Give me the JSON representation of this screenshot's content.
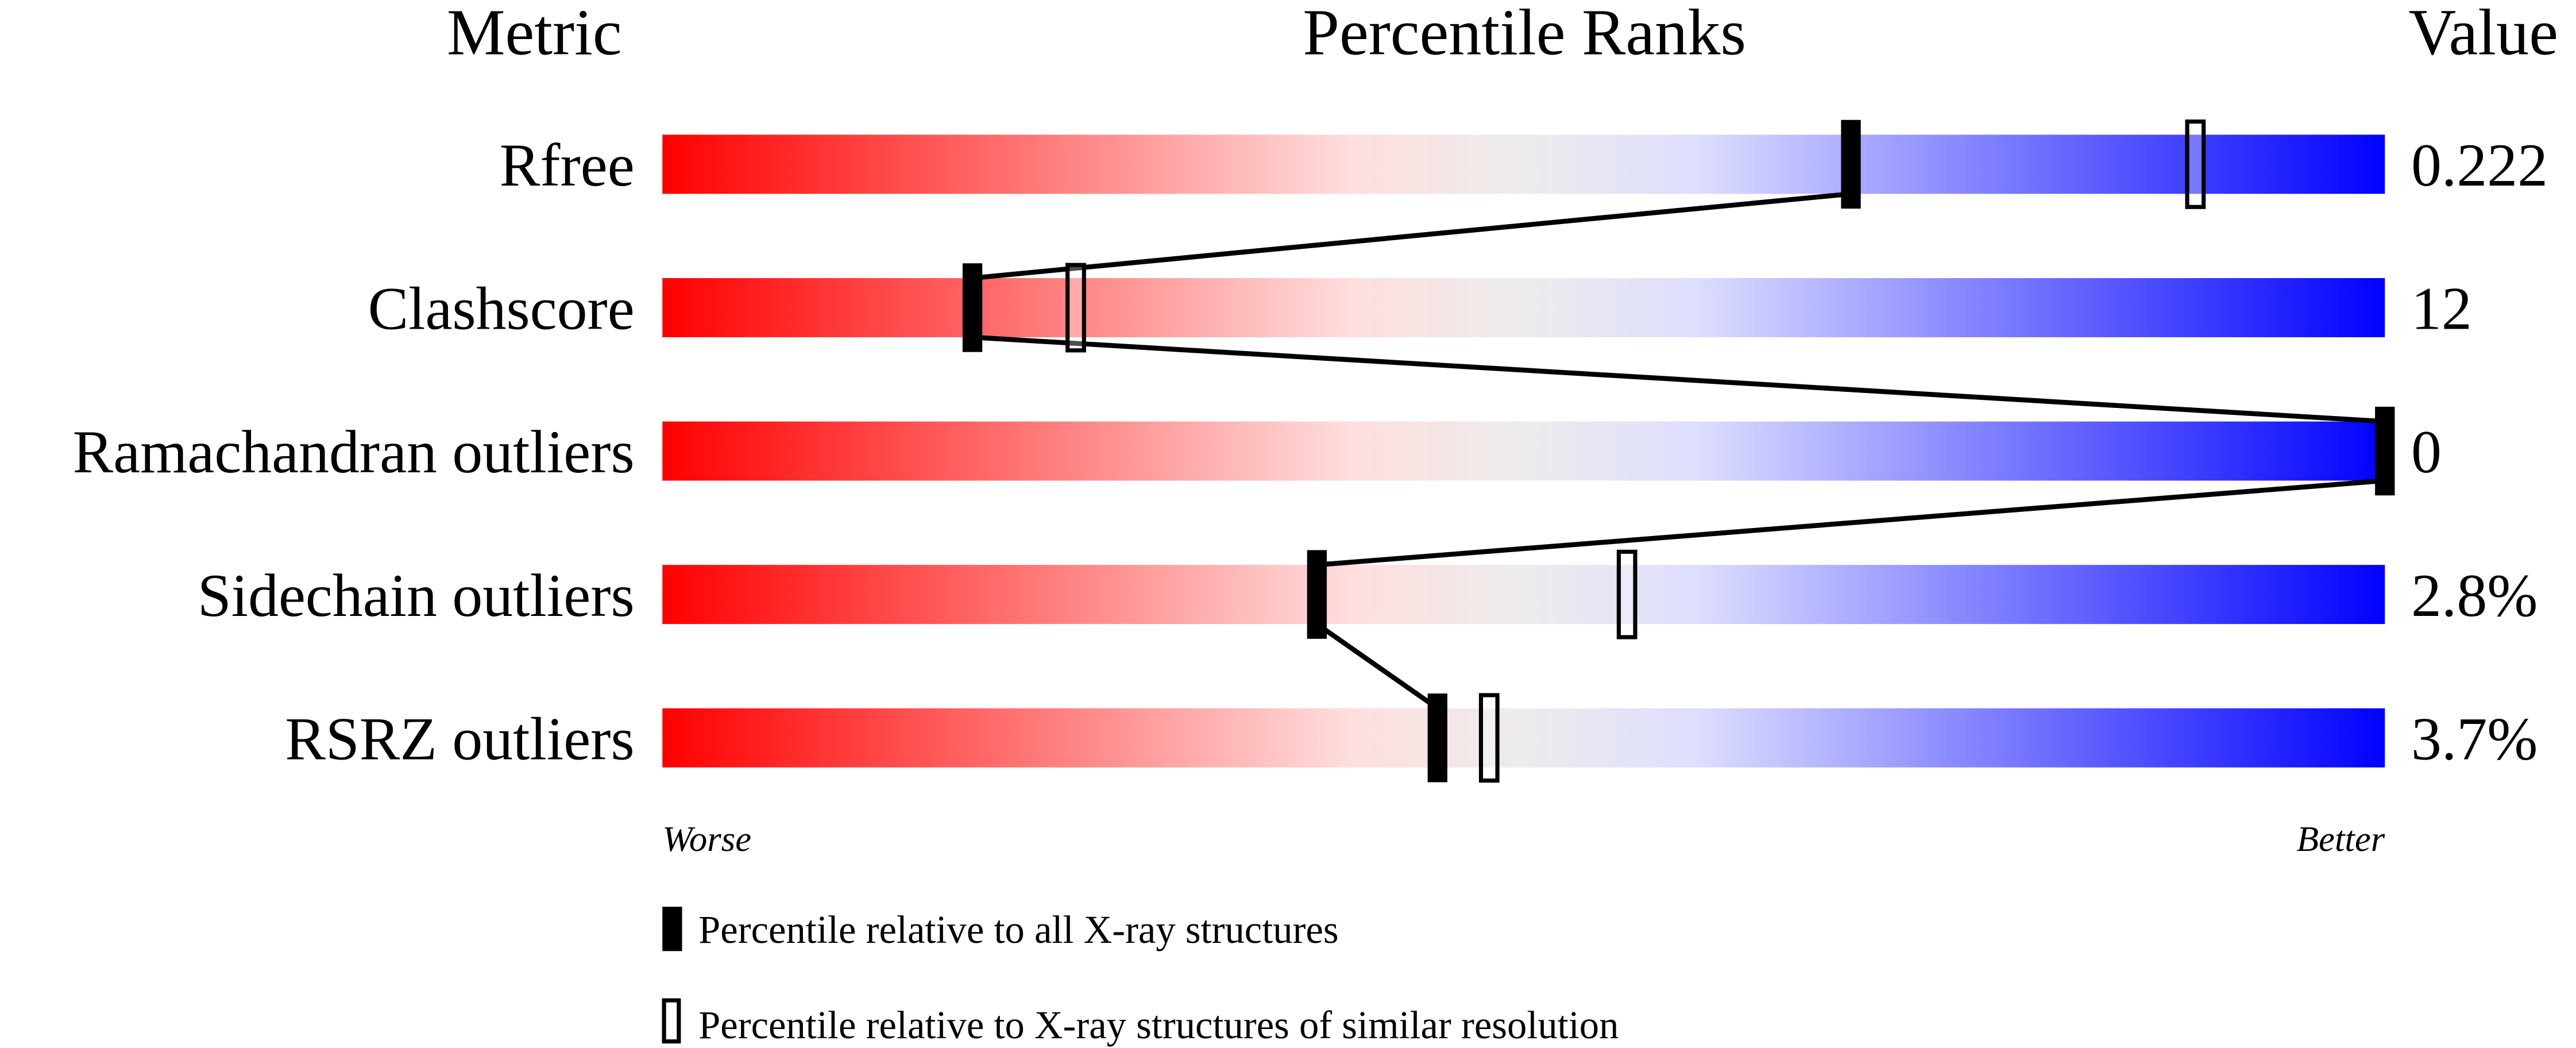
{
  "chart_data": {
    "type": "percentile-ranks",
    "headers": {
      "metric": "Metric",
      "percentile": "Percentile Ranks",
      "value": "Value"
    },
    "axis": {
      "range": [
        0,
        100
      ],
      "left_label": "Worse",
      "right_label": "Better"
    },
    "gradient_colors": [
      "#ff0000",
      "#ffdede",
      "#ececec",
      "#dedeff",
      "#0000ff"
    ],
    "metrics": [
      {
        "name": "Rfree",
        "value": "0.222",
        "percentile_all": 69,
        "percentile_similar": 89
      },
      {
        "name": "Clashscore",
        "value": "12",
        "percentile_all": 18,
        "percentile_similar": 24
      },
      {
        "name": "Ramachandran outliers",
        "value": "0",
        "percentile_all": 100,
        "percentile_similar": 100
      },
      {
        "name": "Sidechain outliers",
        "value": "2.8%",
        "percentile_all": 38,
        "percentile_similar": 56
      },
      {
        "name": "RSRZ outliers",
        "value": "3.7%",
        "percentile_all": 45,
        "percentile_similar": 48
      }
    ],
    "legend": [
      {
        "marker": "filled",
        "label": "Percentile relative to all X-ray structures"
      },
      {
        "marker": "open",
        "label": "Percentile relative to X-ray structures of similar resolution"
      }
    ]
  }
}
